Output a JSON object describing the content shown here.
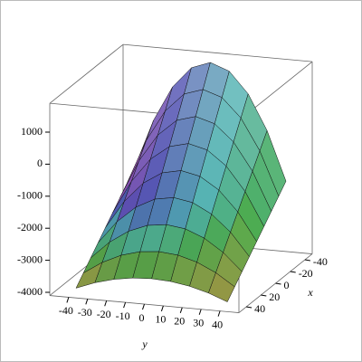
{
  "chart_data": {
    "type": "surface",
    "x_label": "x",
    "y_label": "y",
    "x": [
      -40,
      -30,
      -20,
      -10,
      0,
      10,
      20,
      30,
      40
    ],
    "y": [
      -40,
      -30,
      -20,
      -10,
      0,
      10,
      20,
      30,
      40
    ],
    "z": [
      [
        -1701,
        -174,
        917,
        1572,
        1790,
        1572,
        917,
        -174,
        -1701
      ],
      [
        -1988,
        -624,
        350,
        935,
        1130,
        935,
        350,
        -624,
        -1988
      ],
      [
        -2276,
        -1074,
        -216,
        298,
        470,
        298,
        -216,
        -1074,
        -2276
      ],
      [
        -2563,
        -1525,
        -783,
        -338,
        -190,
        -338,
        -783,
        -1525,
        -2563
      ],
      [
        -2850,
        -1975,
        -1350,
        -975,
        -850,
        -975,
        -1350,
        -1975,
        -2850
      ],
      [
        -3137,
        -2425,
        -1917,
        -1612,
        -1510,
        -1612,
        -1917,
        -2425,
        -3137
      ],
      [
        -3424,
        -2876,
        -2484,
        -2248,
        -2170,
        -2248,
        -2484,
        -2876,
        -3424
      ],
      [
        -3712,
        -3326,
        -3050,
        -2885,
        -2830,
        -2885,
        -3050,
        -3326,
        -3712
      ],
      [
        -3999,
        -3776,
        -3617,
        -3522,
        -3490,
        -3522,
        -3617,
        -3776,
        -3999
      ]
    ],
    "xlim": [
      -50,
      50
    ],
    "ylim": [
      -50,
      50
    ],
    "zlim": [
      -4100,
      1900
    ],
    "xticks": [
      -40,
      -20,
      0,
      20,
      40
    ],
    "yticks": [
      -40,
      -30,
      -20,
      -10,
      0,
      10,
      20,
      30,
      40
    ],
    "zticks": [
      1000,
      0,
      -1000,
      -2000,
      -3000,
      -4000
    ]
  }
}
